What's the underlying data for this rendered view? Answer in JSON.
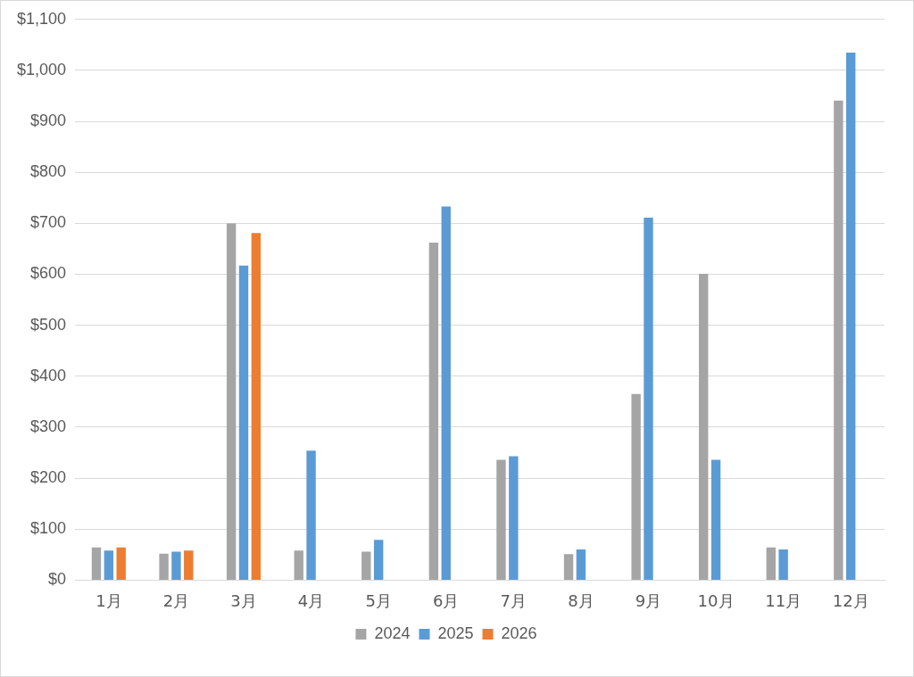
{
  "chart_data": {
    "type": "bar",
    "categories": [
      "1月",
      "2月",
      "3月",
      "4月",
      "5月",
      "6月",
      "7月",
      "8月",
      "9月",
      "10月",
      "11月",
      "12月"
    ],
    "series": [
      {
        "name": "2024",
        "color": "#a5a5a5",
        "values": [
          64,
          52,
          700,
          58,
          56,
          662,
          236,
          51,
          365,
          601,
          64,
          941
        ]
      },
      {
        "name": "2025",
        "color": "#5b9bd5",
        "values": [
          58,
          56,
          617,
          254,
          79,
          733,
          243,
          60,
          711,
          236,
          60,
          1035
        ]
      },
      {
        "name": "2026",
        "color": "#ed7d31",
        "values": [
          64,
          58,
          681,
          null,
          null,
          null,
          null,
          null,
          null,
          null,
          null,
          null
        ]
      }
    ],
    "ylim": [
      0,
      1100
    ],
    "yticks": [
      {
        "value": 0,
        "label": "$0"
      },
      {
        "value": 100,
        "label": "$100"
      },
      {
        "value": 200,
        "label": "$200"
      },
      {
        "value": 300,
        "label": "$300"
      },
      {
        "value": 400,
        "label": "$400"
      },
      {
        "value": 500,
        "label": "$500"
      },
      {
        "value": 600,
        "label": "$600"
      },
      {
        "value": 700,
        "label": "$700"
      },
      {
        "value": 800,
        "label": "$800"
      },
      {
        "value": 900,
        "label": "$900"
      },
      {
        "value": 1000,
        "label": "$1,000"
      },
      {
        "value": 1100,
        "label": "$1,100"
      }
    ],
    "grid": "y",
    "legend": "bottom"
  }
}
